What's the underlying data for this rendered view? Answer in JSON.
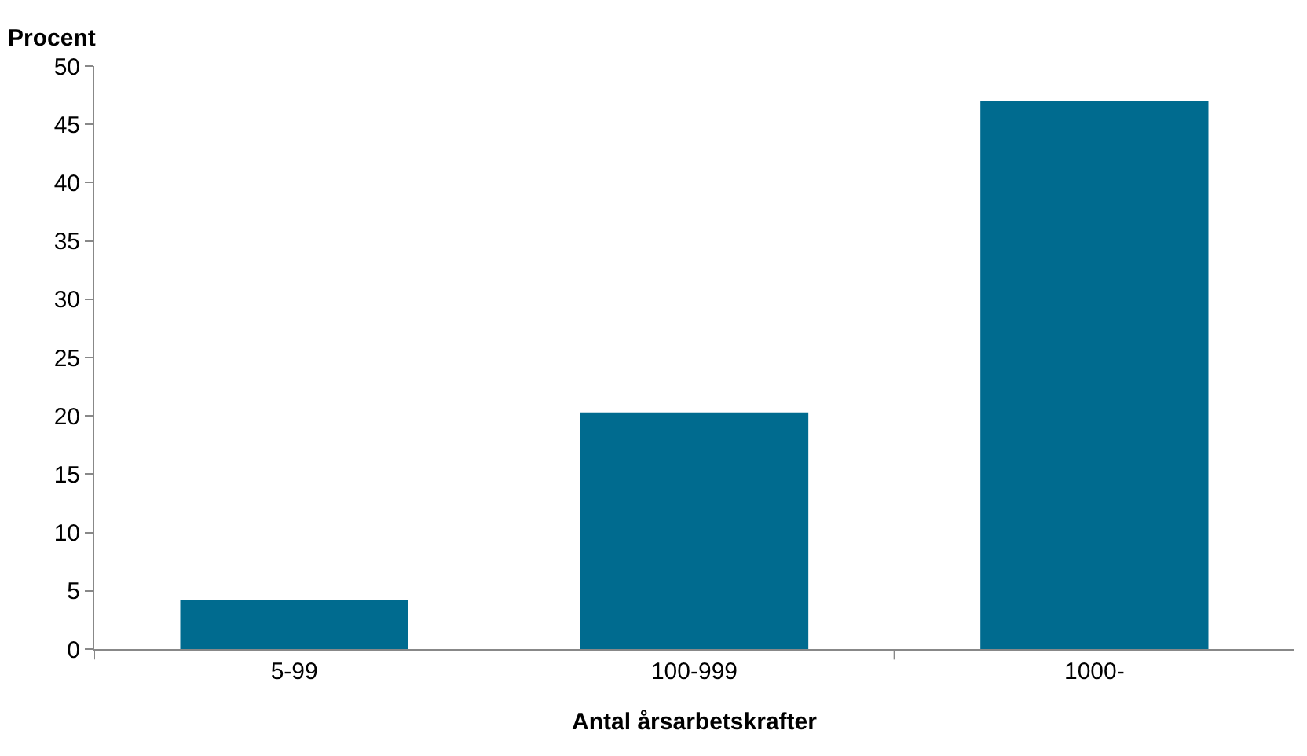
{
  "chart_data": {
    "type": "bar",
    "ylabel": "Procent",
    "xlabel": "Antal årsarbetskrafter",
    "categories": [
      "5-99",
      "100-999",
      "1000-"
    ],
    "values": [
      4.2,
      20.3,
      47.0
    ],
    "color": "#006b8f",
    "ylim": [
      0,
      50
    ],
    "yticks": [
      0,
      5,
      10,
      15,
      20,
      25,
      30,
      35,
      40,
      45,
      50
    ],
    "grid": false
  }
}
